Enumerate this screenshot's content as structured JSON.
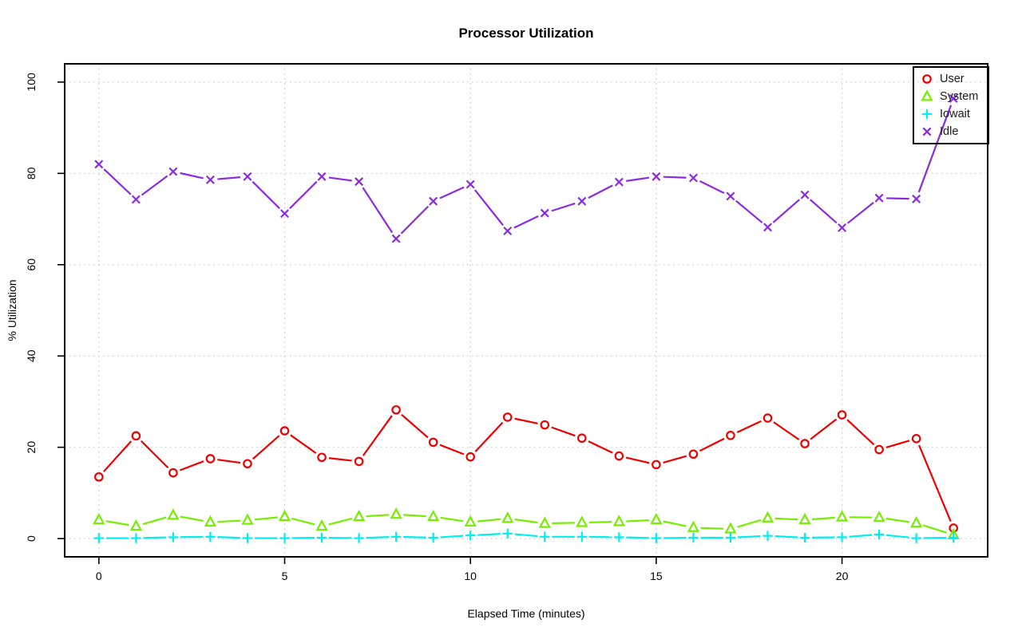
{
  "chart_data": {
    "type": "line",
    "title": "Processor Utilization",
    "xlabel": "Elapsed Time (minutes)",
    "ylabel": "% Utilization",
    "x": [
      0,
      1,
      2,
      3,
      4,
      5,
      6,
      7,
      8,
      9,
      10,
      11,
      12,
      13,
      14,
      15,
      16,
      17,
      18,
      19,
      20,
      21,
      22,
      23
    ],
    "series": [
      {
        "name": "User",
        "color": "#ee0000",
        "marker": "circle",
        "values": [
          13.5,
          22.5,
          14.4,
          17.5,
          16.4,
          23.6,
          17.8,
          16.9,
          28.2,
          21.1,
          17.9,
          26.6,
          24.9,
          22.0,
          18.1,
          16.2,
          18.5,
          22.6,
          26.4,
          20.8,
          27.1,
          19.5,
          21.9,
          2.3
        ]
      },
      {
        "name": "System",
        "color": "#76ee00",
        "marker": "triangle",
        "values": [
          4.1,
          2.7,
          5.1,
          3.6,
          4.0,
          4.8,
          2.7,
          4.8,
          5.3,
          4.8,
          3.6,
          4.4,
          3.3,
          3.5,
          3.7,
          4.1,
          2.4,
          2.1,
          4.5,
          4.1,
          4.7,
          4.6,
          3.4,
          0.8
        ]
      },
      {
        "name": "Iowait",
        "color": "#00eeee",
        "marker": "plus",
        "values": [
          0.1,
          0.1,
          0.3,
          0.4,
          0.1,
          0.1,
          0.2,
          0.1,
          0.4,
          0.2,
          0.7,
          1.1,
          0.4,
          0.4,
          0.3,
          0.1,
          0.2,
          0.2,
          0.6,
          0.2,
          0.3,
          0.9,
          0.1,
          0.2
        ]
      },
      {
        "name": "Idle",
        "color": "#8a2be2",
        "marker": "x",
        "values": [
          82.0,
          74.3,
          80.4,
          78.6,
          79.3,
          71.2,
          79.3,
          78.2,
          65.7,
          73.9,
          77.6,
          67.4,
          71.3,
          73.9,
          78.1,
          79.3,
          79.0,
          75.0,
          68.2,
          75.3,
          68.1,
          74.6,
          74.4,
          96.4
        ]
      }
    ],
    "xticks": [
      0,
      5,
      10,
      15,
      20
    ],
    "yticks": [
      0,
      20,
      40,
      60,
      80,
      100
    ],
    "xlim": [
      -0.92,
      23.92
    ],
    "ylim": [
      -4,
      104
    ],
    "grid": true,
    "grid_color": "#c9c9c9",
    "axis_color": "#000000",
    "legend_position": "top-right"
  }
}
